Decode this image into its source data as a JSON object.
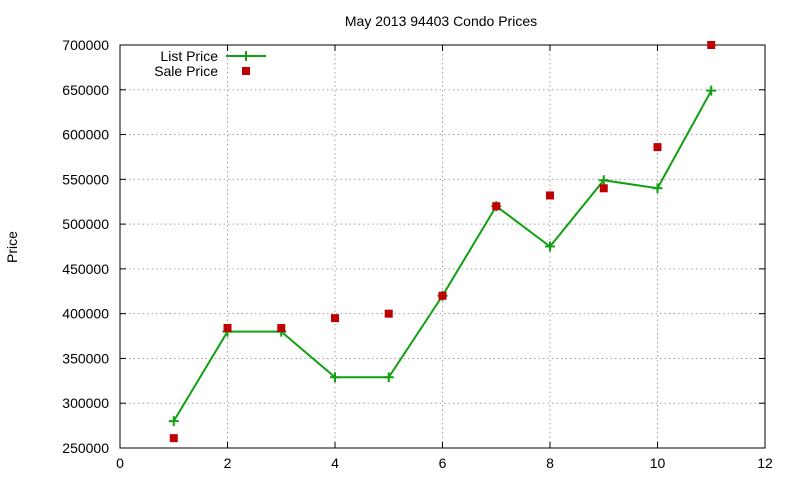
{
  "chart_data": {
    "type": "line",
    "title": "May 2013 94403 Condo Prices",
    "xlabel": "",
    "ylabel": "Price",
    "xlim": [
      0,
      12
    ],
    "ylim": [
      250000,
      700000
    ],
    "xticks": [
      0,
      2,
      4,
      6,
      8,
      10,
      12
    ],
    "yticks": [
      250000,
      300000,
      350000,
      400000,
      450000,
      500000,
      550000,
      600000,
      650000,
      700000
    ],
    "grid": true,
    "legend_position": "top-left",
    "series": [
      {
        "name": "List Price",
        "style": "line-with-plus-markers",
        "color": "#11a011",
        "x": [
          1,
          2,
          3,
          4,
          5,
          6,
          7,
          8,
          9,
          10,
          11
        ],
        "y": [
          280000,
          380000,
          380000,
          329000,
          329000,
          420000,
          520000,
          475000,
          549000,
          540000,
          649000
        ]
      },
      {
        "name": "Sale Price",
        "style": "square-points",
        "color": "#c00000",
        "x": [
          1,
          2,
          3,
          4,
          5,
          6,
          7,
          8,
          9,
          10,
          11
        ],
        "y": [
          261000,
          384000,
          384000,
          395000,
          400000,
          420000,
          520000,
          532000,
          540000,
          586000,
          700000
        ]
      }
    ]
  }
}
